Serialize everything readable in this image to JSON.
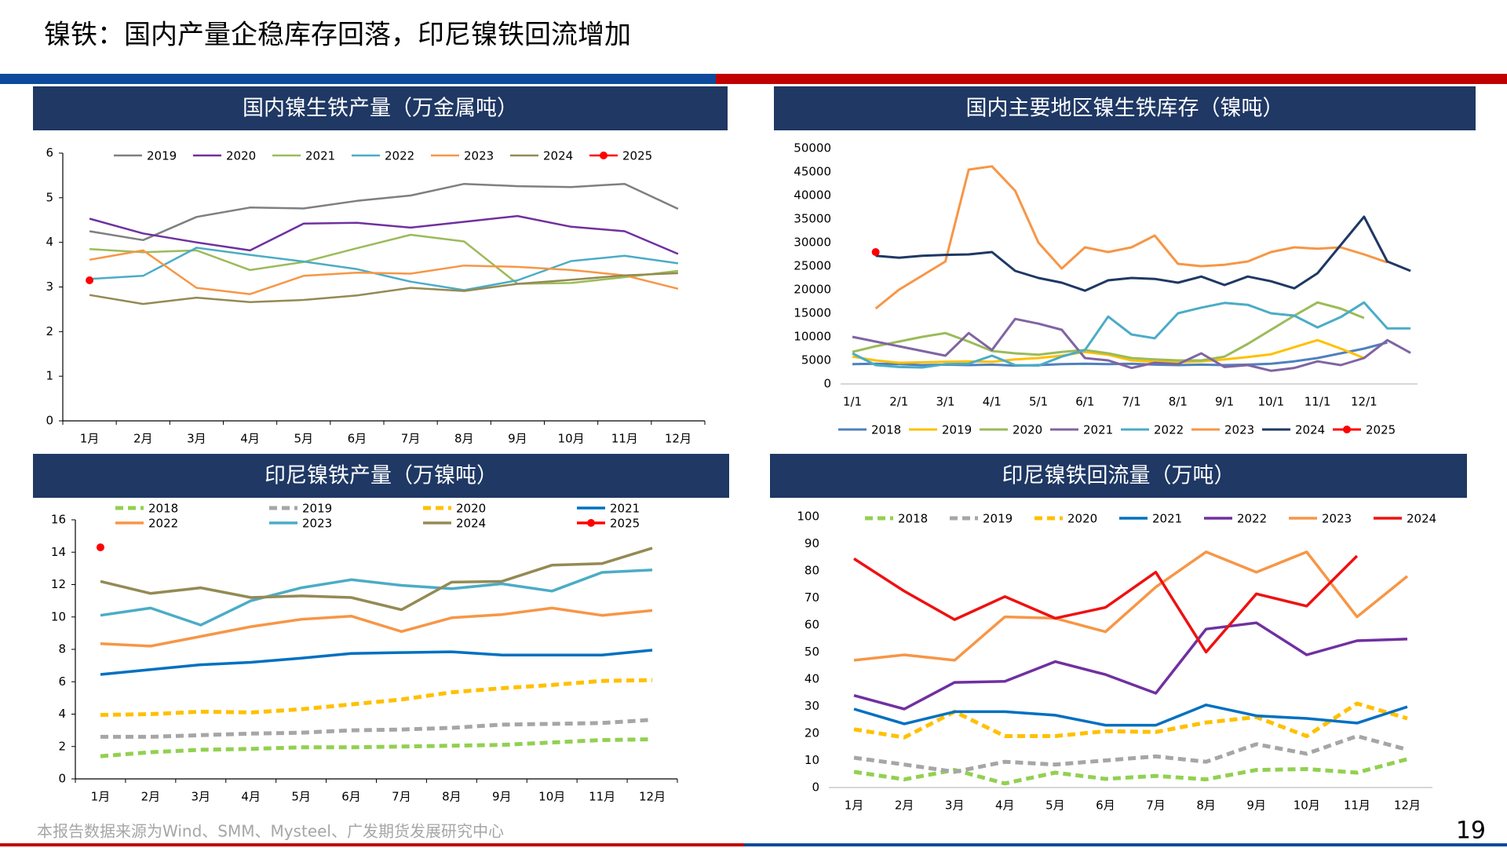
{
  "title": "镍铁：国内产量企稳库存回落，印尼镍铁回流增加",
  "source": "本报告数据来源为Wind、SMM、Mysteel、广发期货发展研究中心",
  "page_number": "19",
  "chart_data": [
    {
      "type": "line",
      "title": "国内镍生铁产量（万金属吨）",
      "categories": [
        "1月",
        "2月",
        "3月",
        "4月",
        "5月",
        "6月",
        "7月",
        "8月",
        "9月",
        "10月",
        "11月",
        "12月"
      ],
      "ylim": [
        0,
        6
      ],
      "yticks": [
        0,
        1,
        2,
        3,
        4,
        5,
        6
      ],
      "series": [
        {
          "name": "2019",
          "color": "#7f7f7f",
          "values": [
            4.25,
            4.05,
            4.57,
            4.78,
            4.76,
            4.93,
            5.05,
            5.31,
            5.26,
            5.24,
            5.31,
            4.75
          ]
        },
        {
          "name": "2020",
          "color": "#7030a0",
          "values": [
            4.53,
            4.2,
            4.0,
            3.82,
            4.42,
            4.44,
            4.33,
            4.46,
            4.59,
            4.35,
            4.25,
            3.74
          ]
        },
        {
          "name": "2021",
          "color": "#9bbb59",
          "values": [
            3.85,
            3.78,
            3.82,
            3.38,
            3.56,
            3.87,
            4.17,
            4.02,
            3.07,
            3.09,
            3.22,
            3.36
          ]
        },
        {
          "name": "2022",
          "color": "#4bacc6",
          "values": [
            3.18,
            3.25,
            3.88,
            3.72,
            3.57,
            3.4,
            3.12,
            2.93,
            3.15,
            3.58,
            3.7,
            3.53
          ]
        },
        {
          "name": "2023",
          "color": "#f79646",
          "values": [
            3.61,
            3.82,
            2.98,
            2.84,
            3.25,
            3.32,
            3.3,
            3.48,
            3.45,
            3.38,
            3.26,
            2.96
          ]
        },
        {
          "name": "2024",
          "color": "#948a54",
          "values": [
            2.82,
            2.62,
            2.76,
            2.66,
            2.71,
            2.81,
            2.98,
            2.91,
            3.07,
            3.16,
            3.26,
            3.31
          ]
        },
        {
          "name": "2025",
          "color": "#ff0000",
          "values": [
            3.15,
            null,
            null,
            null,
            null,
            null,
            null,
            null,
            null,
            null,
            null,
            null
          ]
        }
      ]
    },
    {
      "type": "line",
      "title": "国内主要地区镍生铁库存（镍吨）",
      "categories": [
        "1/1",
        null,
        "2/1",
        null,
        "3/1",
        null,
        "4/1",
        null,
        "5/1",
        null,
        "6/1",
        null,
        "7/1",
        null,
        "8/1",
        null,
        "9/1",
        null,
        "10/1",
        null,
        "11/1",
        null,
        "12/1",
        null,
        null
      ],
      "ylim": [
        0,
        50000
      ],
      "yticks": [
        0,
        5000,
        10000,
        15000,
        20000,
        25000,
        30000,
        35000,
        40000,
        45000,
        50000
      ],
      "series": [
        {
          "name": "2018",
          "color": "#4f81bd",
          "values": [
            4200,
            4300,
            4200,
            4000,
            4100,
            4000,
            4100,
            3900,
            4000,
            4200,
            4300,
            4200,
            4300,
            4100,
            4000,
            4100,
            4000,
            4100,
            4300,
            4800,
            5500,
            6500,
            7500,
            8800,
            null
          ]
        },
        {
          "name": "2019",
          "color": "#ffc000",
          "values": [
            5800,
            5000,
            4500,
            4600,
            4700,
            4800,
            4700,
            5200,
            5500,
            6000,
            6800,
            6200,
            5000,
            4700,
            4600,
            4800,
            5200,
            5700,
            6300,
            7800,
            9300,
            7500,
            5500,
            null,
            null
          ]
        },
        {
          "name": "2020",
          "color": "#9bbb59",
          "values": [
            6800,
            8000,
            9000,
            10000,
            10800,
            9000,
            7000,
            6500,
            6200,
            6800,
            7200,
            6500,
            5500,
            5200,
            5000,
            5000,
            5800,
            8500,
            11500,
            14500,
            17300,
            16000,
            14000,
            null,
            null
          ]
        },
        {
          "name": "2021",
          "color": "#8064a2",
          "values": [
            10000,
            9000,
            8000,
            7000,
            6000,
            10800,
            7200,
            13800,
            12800,
            11500,
            5500,
            5000,
            3400,
            4500,
            4200,
            6500,
            3600,
            4000,
            2800,
            3400,
            4800,
            4000,
            5500,
            9300,
            6600
          ]
        },
        {
          "name": "2022",
          "color": "#4bacc6",
          "values": [
            6500,
            4000,
            3600,
            3500,
            4200,
            4300,
            6000,
            4000,
            3900,
            5800,
            7200,
            14300,
            10500,
            9700,
            15000,
            16200,
            17200,
            16800,
            15000,
            14500,
            12000,
            14200,
            17300,
            11800,
            11800
          ]
        },
        {
          "name": "2023",
          "color": "#f79646",
          "values": [
            null,
            16000,
            20000,
            23000,
            26000,
            45500,
            46200,
            41000,
            30000,
            24500,
            29000,
            28000,
            29000,
            31500,
            25500,
            25000,
            25300,
            26000,
            28000,
            29000,
            28700,
            29000,
            27500,
            25800,
            null
          ]
        },
        {
          "name": "2024",
          "color": "#1f3864",
          "values": [
            null,
            27200,
            26800,
            27200,
            27400,
            27500,
            28000,
            24000,
            22500,
            21500,
            19800,
            22000,
            22500,
            22300,
            21500,
            22800,
            21000,
            22800,
            21800,
            20300,
            23500,
            29500,
            35500,
            26000,
            24000
          ]
        },
        {
          "name": "2025",
          "color": "#ff0000",
          "values": [
            null,
            28000,
            null,
            null,
            null,
            null,
            null,
            null,
            null,
            null,
            null,
            null,
            null,
            null,
            null,
            null,
            null,
            null,
            null,
            null,
            null,
            null,
            null,
            null,
            null
          ]
        }
      ]
    },
    {
      "type": "line",
      "title": "印尼镍铁产量（万镍吨）",
      "categories": [
        "1月",
        "2月",
        "3月",
        "4月",
        "5月",
        "6月",
        "7月",
        "8月",
        "9月",
        "10月",
        "11月",
        "12月"
      ],
      "ylim": [
        0,
        16
      ],
      "yticks": [
        0,
        2,
        4,
        6,
        8,
        10,
        12,
        14,
        16
      ],
      "series": [
        {
          "name": "2018",
          "color": "#92d050",
          "dashed": true,
          "values": [
            1.4,
            1.65,
            1.8,
            1.85,
            1.95,
            1.95,
            2.0,
            2.05,
            2.1,
            2.25,
            2.4,
            2.45
          ]
        },
        {
          "name": "2019",
          "color": "#a6a6a6",
          "dashed": true,
          "values": [
            2.6,
            2.6,
            2.7,
            2.8,
            2.85,
            3.0,
            3.05,
            3.15,
            3.35,
            3.4,
            3.45,
            3.65
          ]
        },
        {
          "name": "2020",
          "color": "#ffc000",
          "dashed": true,
          "values": [
            3.95,
            4.0,
            4.15,
            4.1,
            4.3,
            4.6,
            4.9,
            5.35,
            5.6,
            5.8,
            6.05,
            6.1
          ]
        },
        {
          "name": "2021",
          "color": "#0070c0",
          "values": [
            6.45,
            6.75,
            7.05,
            7.2,
            7.45,
            7.75,
            7.8,
            7.85,
            7.65,
            7.65,
            7.65,
            7.95
          ]
        },
        {
          "name": "2022",
          "color": "#f79646",
          "values": [
            8.35,
            8.2,
            8.8,
            9.4,
            9.85,
            10.05,
            9.1,
            9.95,
            10.15,
            10.55,
            10.1,
            10.4
          ]
        },
        {
          "name": "2023",
          "color": "#4bacc6",
          "values": [
            10.1,
            10.55,
            9.5,
            11.0,
            11.8,
            12.3,
            11.95,
            11.75,
            12.05,
            11.6,
            12.75,
            12.9
          ]
        },
        {
          "name": "2024",
          "color": "#948a54",
          "values": [
            12.2,
            11.45,
            11.8,
            11.2,
            11.3,
            11.2,
            10.45,
            12.15,
            12.2,
            13.2,
            13.3,
            14.25
          ]
        },
        {
          "name": "2025",
          "color": "#ff0000",
          "values": [
            14.3,
            null,
            null,
            null,
            null,
            null,
            null,
            null,
            null,
            null,
            null,
            null
          ]
        }
      ]
    },
    {
      "type": "line",
      "title": "印尼镍铁回流量（万吨）",
      "categories": [
        "1月",
        "2月",
        "3月",
        "4月",
        "5月",
        "6月",
        "7月",
        "8月",
        "9月",
        "10月",
        "11月",
        "12月"
      ],
      "ylim": [
        0,
        100
      ],
      "yticks": [
        0,
        10,
        20,
        30,
        40,
        50,
        60,
        70,
        80,
        90,
        100
      ],
      "series": [
        {
          "name": "2018",
          "color": "#92d050",
          "dashed": true,
          "values": [
            5.8,
            3,
            6.5,
            1.5,
            5.5,
            3.2,
            4.3,
            3,
            6.5,
            6.8,
            5.5,
            10.5
          ]
        },
        {
          "name": "2019",
          "color": "#a6a6a6",
          "dashed": true,
          "values": [
            11,
            8.5,
            5.8,
            9.5,
            8.5,
            10,
            11.5,
            9.5,
            16,
            12.5,
            19,
            14
          ]
        },
        {
          "name": "2020",
          "color": "#ffc000",
          "dashed": true,
          "values": [
            21.5,
            18.5,
            28,
            19,
            19,
            20.8,
            20.5,
            24,
            26,
            19,
            31,
            25.5
          ]
        },
        {
          "name": "2021",
          "color": "#0070c0",
          "values": [
            29,
            23.5,
            28,
            28,
            26.7,
            23,
            23,
            30.5,
            26.5,
            25.5,
            23.8,
            29.8
          ]
        },
        {
          "name": "2022",
          "color": "#7030a0",
          "values": [
            34,
            29,
            38.8,
            39.2,
            46.5,
            41.7,
            34.8,
            58.5,
            60.8,
            49,
            54.2,
            54.8
          ]
        },
        {
          "name": "2023",
          "color": "#f79646",
          "values": [
            47,
            49,
            47,
            63,
            62.5,
            57.5,
            74,
            87,
            79.5,
            87,
            63,
            78
          ]
        },
        {
          "name": "2024",
          "color": "#ee1111",
          "values": [
            84.5,
            72.5,
            62,
            70.5,
            62.5,
            66.5,
            79.5,
            50,
            71.5,
            67,
            85.5,
            null
          ]
        }
      ]
    }
  ]
}
